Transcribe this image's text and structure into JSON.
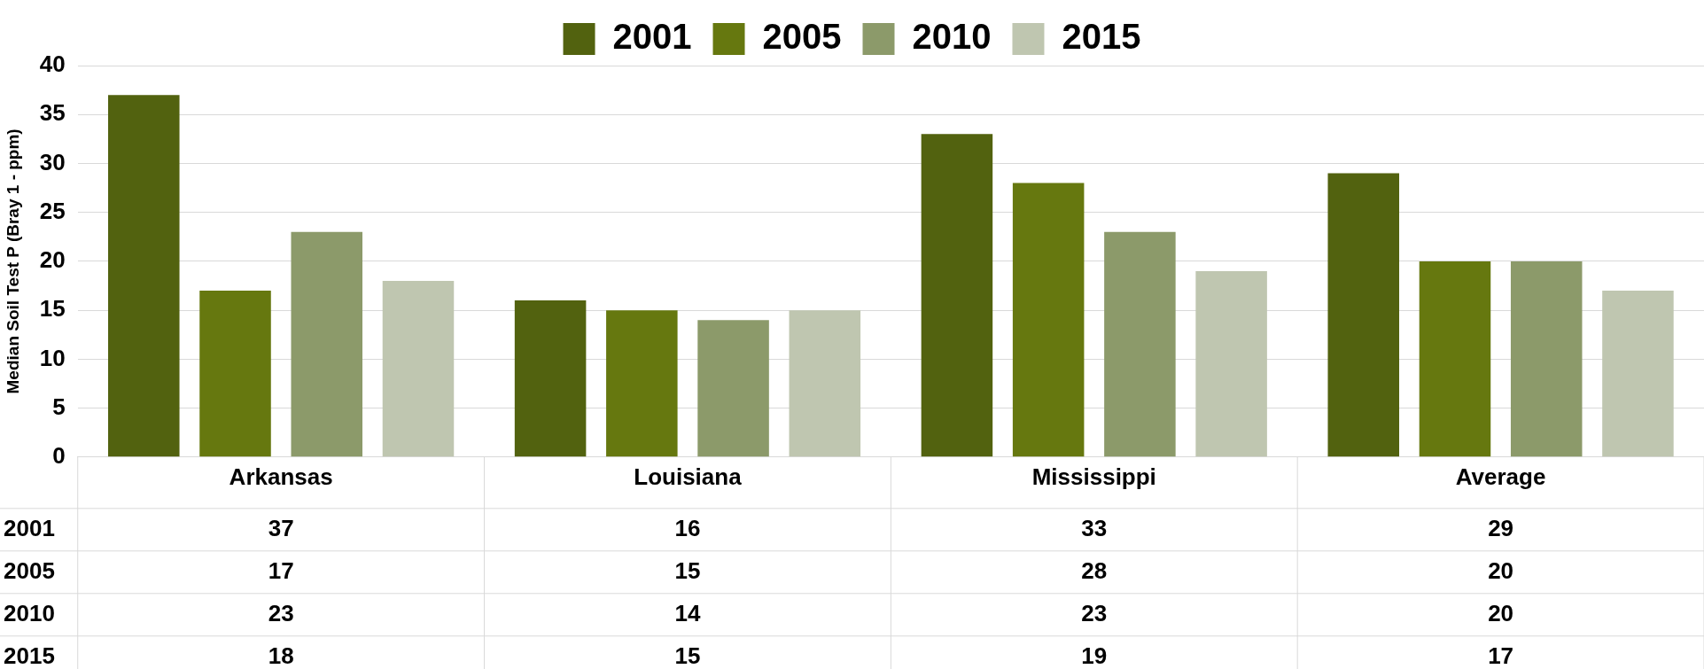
{
  "chart_data": {
    "type": "bar",
    "ylabel": "Median Soil Test P (Bray 1 - ppm)",
    "categories": [
      "Arkansas",
      "Louisiana",
      "Mississippi",
      "Average"
    ],
    "series": [
      {
        "name": "2001",
        "color": "#52620f",
        "values": [
          37,
          16,
          33,
          29
        ]
      },
      {
        "name": "2005",
        "color": "#66780f",
        "values": [
          17,
          15,
          28,
          20
        ]
      },
      {
        "name": "2010",
        "color": "#8c9a6a",
        "values": [
          23,
          14,
          23,
          20
        ]
      },
      {
        "name": "2015",
        "color": "#bfc6b0",
        "values": [
          18,
          15,
          19,
          17
        ]
      }
    ],
    "ylim": [
      0,
      40
    ],
    "yticks": [
      0,
      5,
      10,
      15,
      20,
      25,
      30,
      35,
      40
    ],
    "grid": "y",
    "legend": "top",
    "data_labels": true
  }
}
